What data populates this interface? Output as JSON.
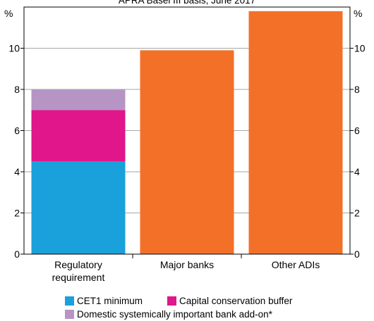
{
  "chart_data": {
    "type": "bar",
    "stacked": true,
    "subtitle": "APRA Basel III basis, June 2017",
    "ylabel": "%",
    "ylim": [
      0,
      12
    ],
    "yticks": [
      0,
      2,
      4,
      6,
      8,
      10
    ],
    "grid": true,
    "categories": [
      [
        "Regulatory",
        "requirement"
      ],
      [
        "Major banks"
      ],
      [
        "Other ADIs"
      ]
    ],
    "series": [
      {
        "name": "CET1 minimum",
        "color": "#1aa0da",
        "values": [
          4.5,
          null,
          null
        ]
      },
      {
        "name": "Capital conservation buffer",
        "color": "#e0168a",
        "values": [
          2.5,
          null,
          null
        ]
      },
      {
        "name": "Domestic systemically important bank add-on*",
        "color": "#b695c5",
        "values": [
          1.0,
          null,
          null
        ]
      },
      {
        "name": "",
        "color": "#f37029",
        "values": [
          null,
          9.9,
          11.8
        ]
      }
    ],
    "legend_position": "bottom"
  }
}
